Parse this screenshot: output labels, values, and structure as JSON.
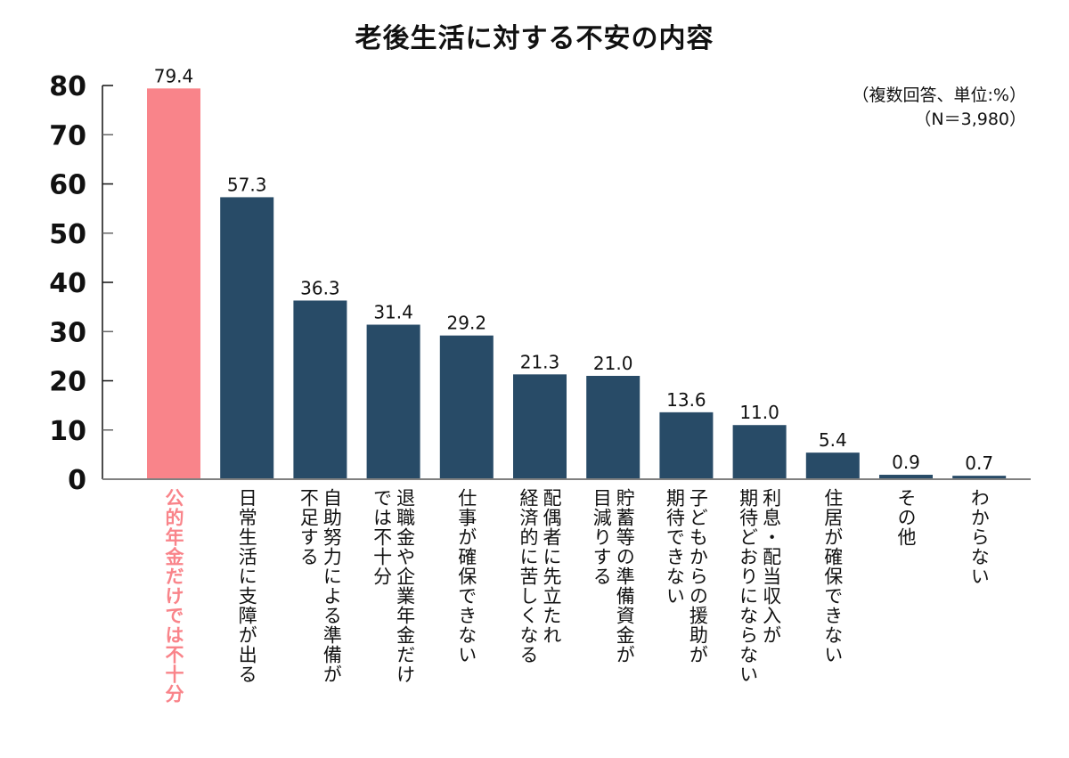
{
  "chart_data": {
    "type": "bar",
    "title": "老後生活に対する不安の内容",
    "unit_note": "（複数回答、単位:%）",
    "n_note": "（N＝3,980）",
    "xlabel": "",
    "ylabel": "",
    "ylim": [
      0,
      80
    ],
    "yticks": [
      0,
      10,
      20,
      30,
      40,
      50,
      60,
      70,
      80
    ],
    "grid": false,
    "legend": "none",
    "highlight_index": 0,
    "colors": {
      "bar": "#284b67",
      "highlight": "#f9848a",
      "axis": "#111111",
      "baseline": "#808080"
    },
    "categories": [
      {
        "label": "公的年金だけでは不十分",
        "lines": [
          "公的年金だけでは不十分"
        ]
      },
      {
        "label": "日常生活に支障が出る",
        "lines": [
          "日常生活に支障が出る"
        ]
      },
      {
        "label": "自助努力による準備が不足する",
        "lines": [
          "自助努力による準備が",
          "不足する"
        ]
      },
      {
        "label": "退職金や企業年金だけでは不十分",
        "lines": [
          "退職金や企業年金だけ",
          "では不十分"
        ]
      },
      {
        "label": "仕事が確保できない",
        "lines": [
          "仕事が確保できない"
        ]
      },
      {
        "label": "配偶者に先立たれ経済的に苦しくなる",
        "lines": [
          "配偶者に先立たれ",
          "経済的に苦しくなる"
        ]
      },
      {
        "label": "貯蓄等の準備資金が目減りする",
        "lines": [
          "貯蓄等の準備資金が",
          "目減りする"
        ]
      },
      {
        "label": "子どもからの援助が期待できない",
        "lines": [
          "子どもからの援助が",
          "期待できない"
        ]
      },
      {
        "label": "利息・配当収入が期待どおりにならない",
        "lines": [
          "利息・配当収入が",
          "期待どおりにならない"
        ]
      },
      {
        "label": "住居が確保できない",
        "lines": [
          "住居が確保できない"
        ]
      },
      {
        "label": "その他",
        "lines": [
          "その他"
        ]
      },
      {
        "label": "わからない",
        "lines": [
          "わからない"
        ]
      }
    ],
    "values": [
      79.4,
      57.3,
      36.3,
      31.4,
      29.2,
      21.3,
      21.0,
      13.6,
      11.0,
      5.4,
      0.9,
      0.7
    ],
    "value_labels": [
      "79.4",
      "57.3",
      "36.3",
      "31.4",
      "29.2",
      "21.3",
      "21.0",
      "13.6",
      "11.0",
      "5.4",
      "0.9",
      "0.7"
    ]
  }
}
